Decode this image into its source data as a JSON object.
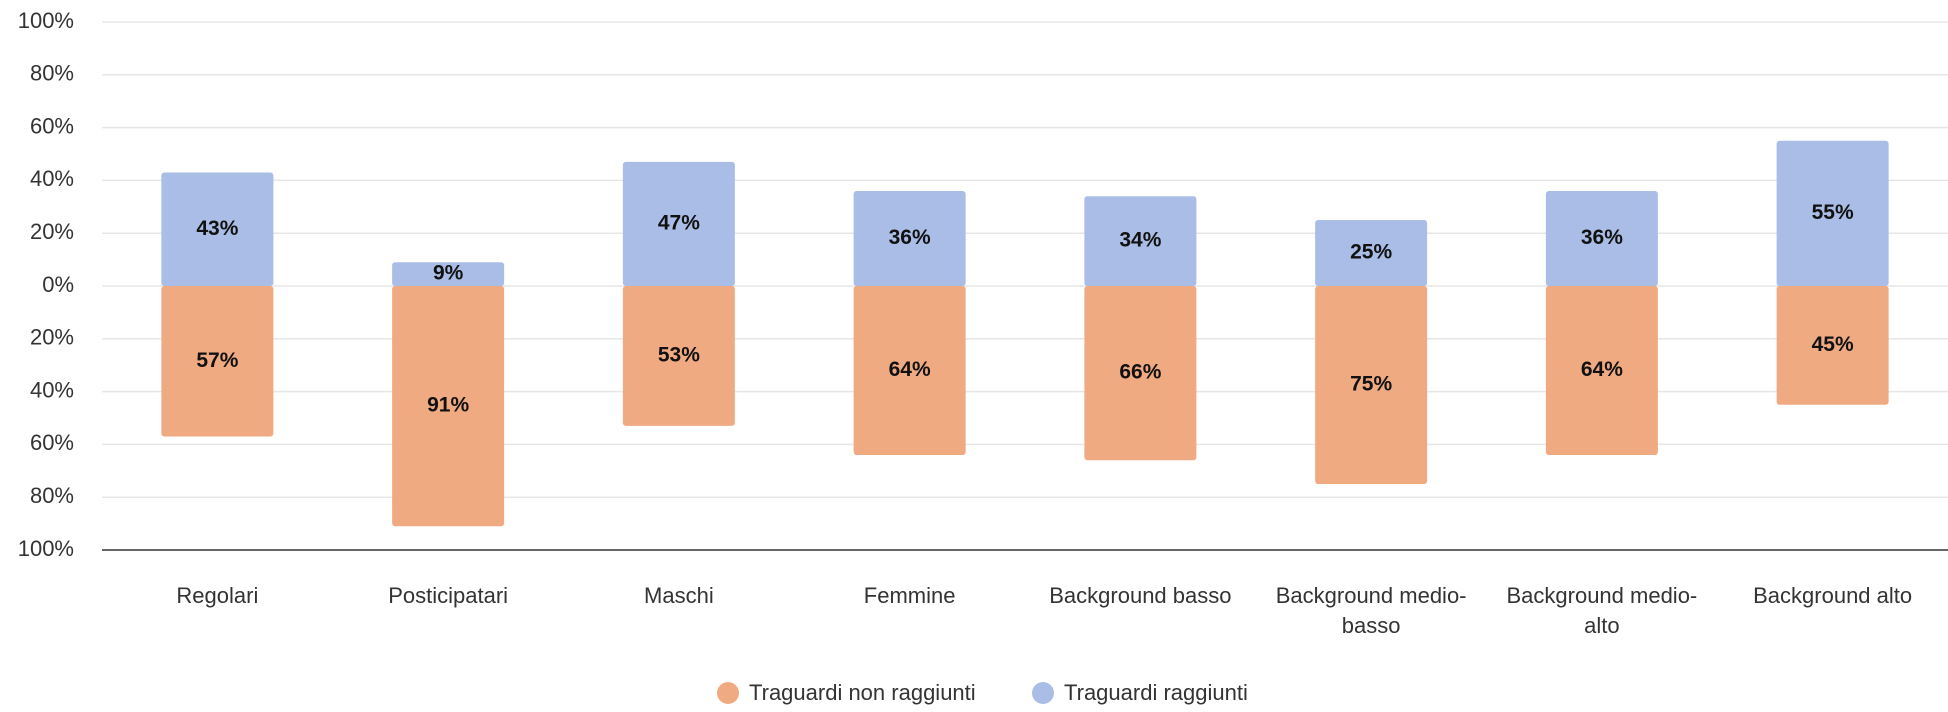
{
  "chart_data": {
    "type": "diverging-bar",
    "categories": [
      "Regolari",
      "Posticipatari",
      "Maschi",
      "Femmine",
      "Background basso",
      "Background medio-basso",
      "Background medio-alto",
      "Background alto"
    ],
    "series": [
      {
        "name": "Traguardi non raggiunti",
        "color": "#f0aa82",
        "values": [
          -57,
          -91,
          -53,
          -64,
          -66,
          -75,
          -64,
          -45
        ],
        "value_labels": [
          "57%",
          "91%",
          "53%",
          "64%",
          "66%",
          "75%",
          "64%",
          "45%"
        ]
      },
      {
        "name": "Traguardi raggiunti",
        "color": "#a9bde6",
        "values": [
          43,
          9,
          47,
          36,
          34,
          25,
          36,
          55
        ],
        "value_labels": [
          "43%",
          "9%",
          "47%",
          "36%",
          "34%",
          "25%",
          "36%",
          "55%"
        ]
      }
    ],
    "ylim": [
      -100,
      100
    ],
    "yticks": [
      {
        "value": 100,
        "label": "100%"
      },
      {
        "value": 80,
        "label": "80%"
      },
      {
        "value": 60,
        "label": "60%"
      },
      {
        "value": 40,
        "label": "40%"
      },
      {
        "value": 20,
        "label": "20%"
      },
      {
        "value": 0,
        "label": "0%"
      },
      {
        "value": -20,
        "label": "20%"
      },
      {
        "value": -40,
        "label": "40%"
      },
      {
        "value": -60,
        "label": "60%"
      },
      {
        "value": -80,
        "label": "80%"
      },
      {
        "value": -100,
        "label": "100%"
      }
    ],
    "grid": true,
    "legend": "bottom"
  }
}
